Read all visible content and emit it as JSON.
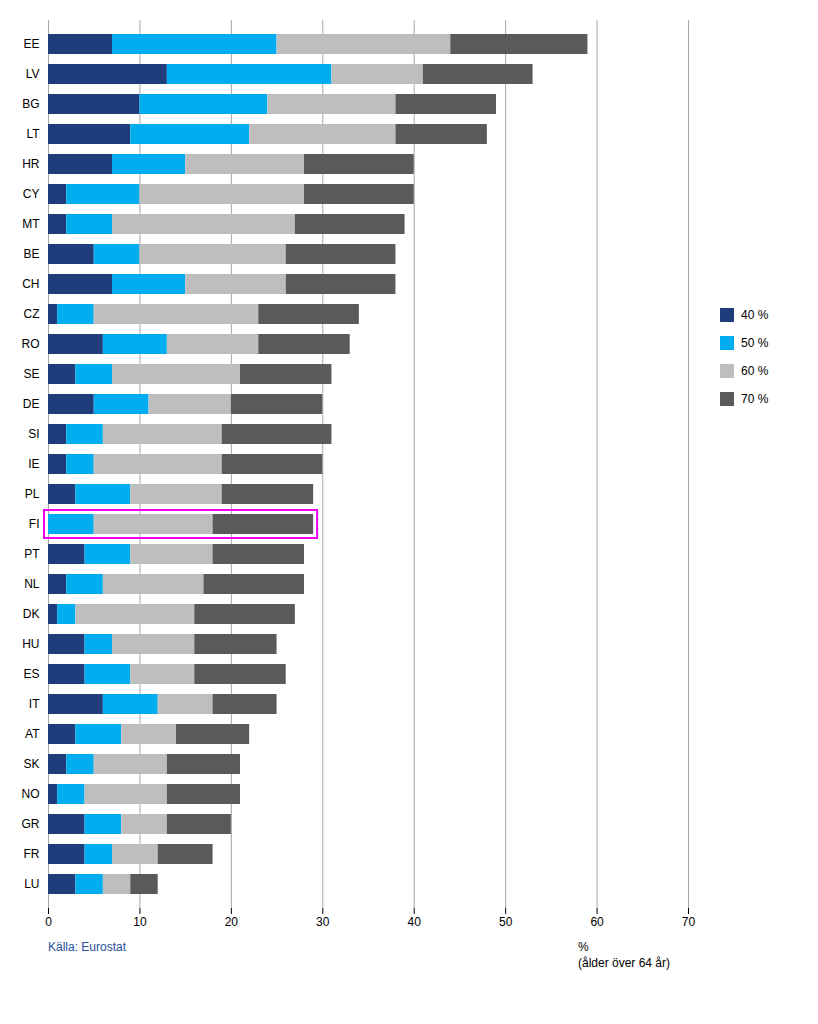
{
  "chart_data": {
    "type": "bar",
    "orientation": "horizontal",
    "stacked": true,
    "categories": [
      "EE",
      "LV",
      "BG",
      "LT",
      "HR",
      "CY",
      "MT",
      "BE",
      "CH",
      "CZ",
      "RO",
      "SE",
      "DE",
      "SI",
      "IE",
      "PL",
      "FI",
      "PT",
      "NL",
      "DK",
      "HU",
      "ES",
      "IT",
      "AT",
      "SK",
      "NO",
      "GR",
      "FR",
      "LU"
    ],
    "series": [
      {
        "name": "40 %",
        "color": "#1F3D7A",
        "values": [
          7,
          13,
          10,
          9,
          7,
          2,
          2,
          5,
          7,
          1,
          6,
          3,
          5,
          2,
          2,
          3,
          0,
          4,
          2,
          1,
          4,
          4,
          6,
          3,
          2,
          1,
          4,
          4,
          3
        ]
      },
      {
        "name": "50 %",
        "color": "#00AEEF",
        "values": [
          18,
          18,
          14,
          13,
          8,
          8,
          5,
          5,
          8,
          4,
          7,
          4,
          6,
          4,
          3,
          6,
          5,
          5,
          4,
          2,
          3,
          5,
          6,
          5,
          3,
          3,
          4,
          3,
          3
        ]
      },
      {
        "name": "60 %",
        "color": "#BEBEBE",
        "values": [
          19,
          10,
          14,
          16,
          13,
          18,
          20,
          16,
          11,
          18,
          10,
          14,
          9,
          13,
          14,
          10,
          13,
          9,
          11,
          13,
          9,
          7,
          6,
          6,
          8,
          9,
          5,
          5,
          3
        ]
      },
      {
        "name": "70 %",
        "color": "#5A5A5A",
        "values": [
          15,
          12,
          11,
          10,
          12,
          12,
          12,
          12,
          12,
          11,
          10,
          10,
          10,
          12,
          11,
          10,
          11,
          10,
          11,
          11,
          9,
          10,
          7,
          8,
          8,
          8,
          7,
          6,
          3
        ]
      }
    ],
    "xlabel": "%",
    "xlim": [
      0,
      70
    ],
    "xticks": [
      0,
      10,
      20,
      30,
      40,
      50,
      60,
      70
    ],
    "grid": true,
    "legend": "right",
    "highlight": {
      "category": "FI",
      "color": "#EE00EE"
    },
    "annotations": [
      {
        "text": "Källa: Eurostat",
        "color": "#1F4E9C"
      },
      {
        "text": "(ålder över 64 år)"
      }
    ]
  }
}
